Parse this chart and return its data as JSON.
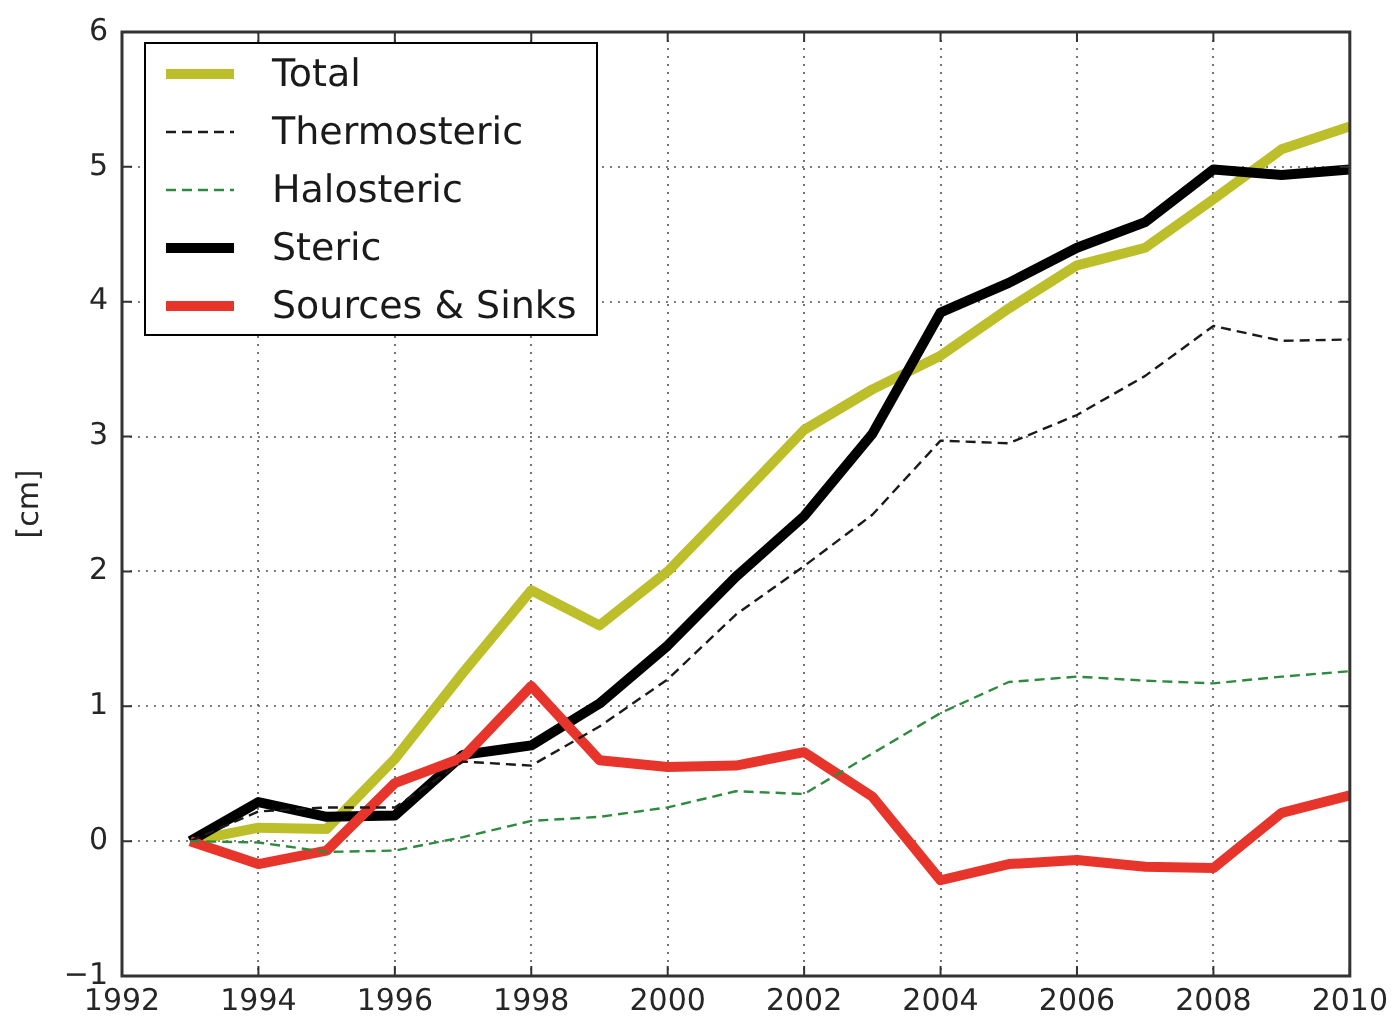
{
  "chart_data": {
    "type": "line",
    "x": [
      1993,
      1994,
      1995,
      1996,
      1997,
      1998,
      1999,
      2000,
      2001,
      2002,
      2003,
      2004,
      2005,
      2006,
      2007,
      2008,
      2009,
      2010
    ],
    "series": [
      {
        "name": "Total",
        "color": "#bcbf2a",
        "line_style": "solid",
        "values": [
          0,
          0.1,
          0.09,
          0.61,
          1.25,
          1.86,
          1.6,
          2.0,
          2.52,
          3.05,
          3.35,
          3.6,
          3.95,
          4.27,
          4.4,
          4.76,
          5.13,
          5.3
        ]
      },
      {
        "name": "Thermosteric",
        "color": "#1a1a1a",
        "line_style": "dashed",
        "values": [
          0,
          0.22,
          0.25,
          0.25,
          0.59,
          0.56,
          0.85,
          1.2,
          1.68,
          2.04,
          2.42,
          2.97,
          2.95,
          3.16,
          3.45,
          3.82,
          3.71,
          3.72
        ]
      },
      {
        "name": "Halosteric",
        "color": "#2e8b3e",
        "line_style": "dashed",
        "values": [
          0,
          -0.01,
          -0.08,
          -0.07,
          0.03,
          0.15,
          0.18,
          0.25,
          0.37,
          0.35,
          0.65,
          0.95,
          1.18,
          1.22,
          1.19,
          1.17,
          1.22,
          1.26
        ]
      },
      {
        "name": "Steric",
        "color": "#000000",
        "line_style": "solid",
        "values": [
          0,
          0.29,
          0.18,
          0.19,
          0.64,
          0.71,
          1.02,
          1.45,
          1.96,
          2.41,
          3.02,
          3.92,
          4.14,
          4.4,
          4.59,
          4.98,
          4.94,
          4.98
        ]
      },
      {
        "name": "Sources & Sinks",
        "color": "#e8352b",
        "line_style": "solid",
        "values": [
          0,
          -0.17,
          -0.07,
          0.43,
          0.62,
          1.15,
          0.6,
          0.55,
          0.56,
          0.66,
          0.33,
          -0.29,
          -0.17,
          -0.14,
          -0.19,
          -0.2,
          0.21,
          0.34
        ]
      }
    ],
    "ylabel": "[cm]",
    "xlim": [
      1992,
      2010
    ],
    "xticks": [
      1992,
      1994,
      1996,
      1998,
      2000,
      2002,
      2004,
      2006,
      2008,
      2010
    ],
    "ylim": [
      -1,
      6
    ],
    "yticks": [
      {
        "value": -1,
        "label": "−1"
      },
      0,
      1,
      2,
      3,
      4,
      5,
      6
    ],
    "grid": true,
    "legend": "top left"
  }
}
